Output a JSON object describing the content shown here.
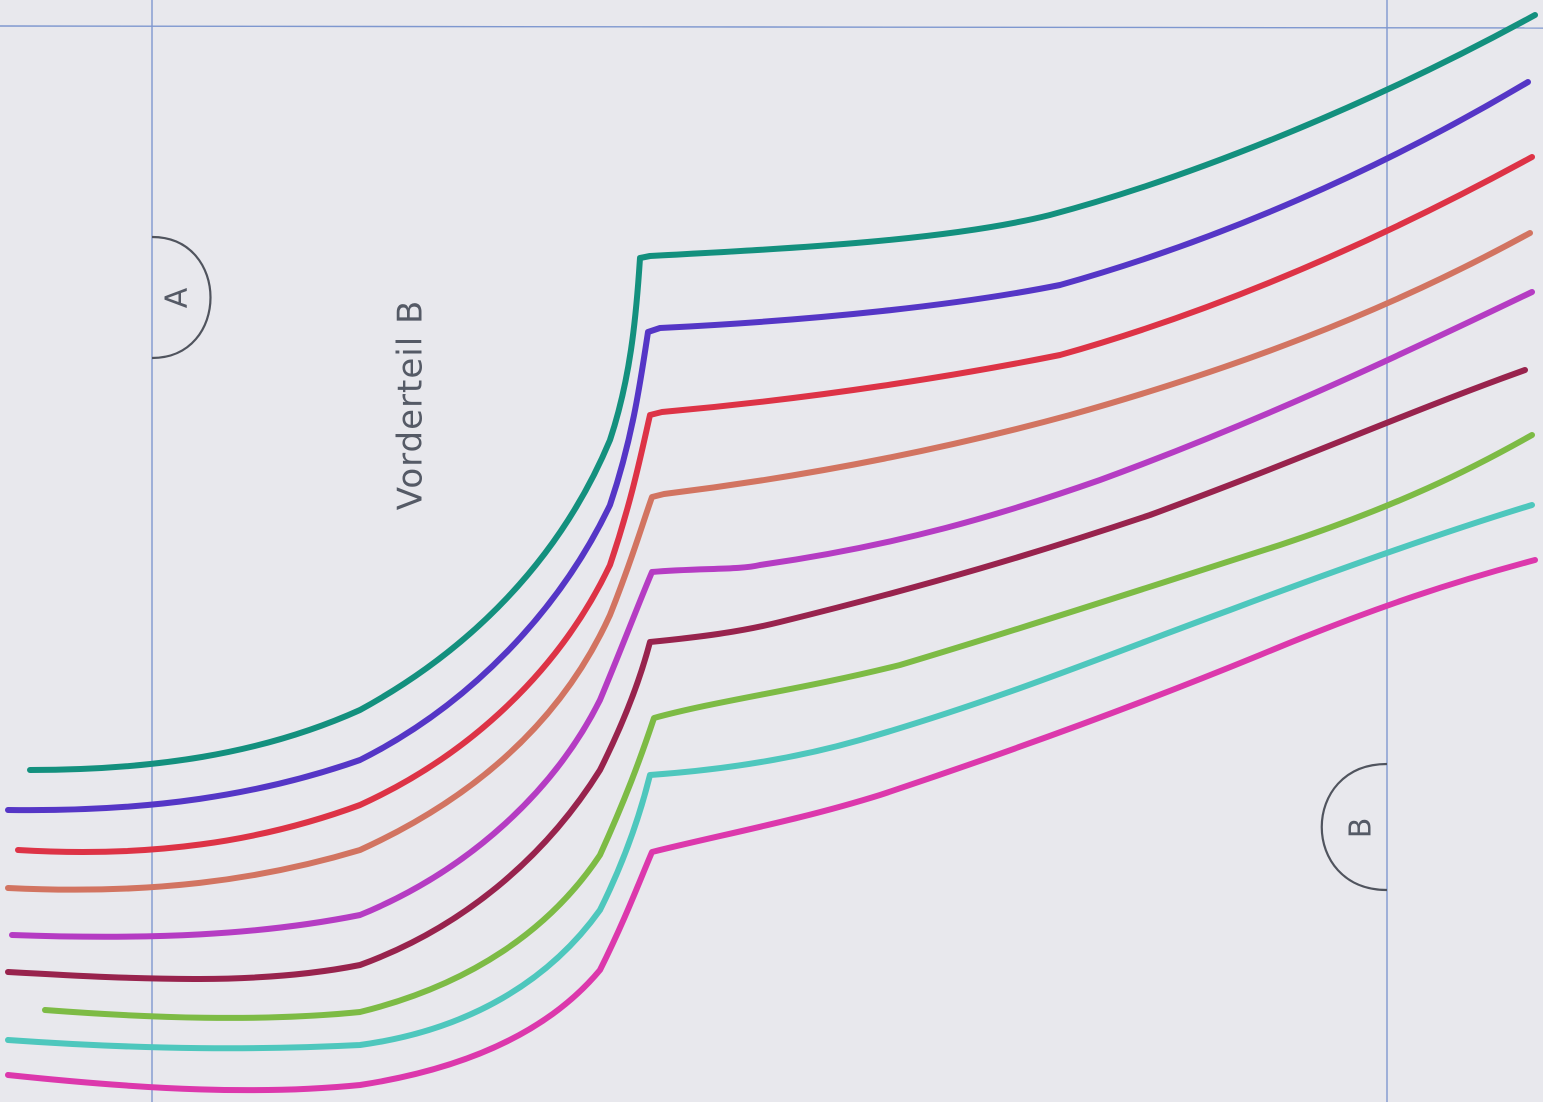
{
  "sheet": {
    "title": "Vorderteil B",
    "paper_color": "#e8e8ed",
    "guide_color": "#7e97cf"
  },
  "markers": {
    "a": {
      "label": "A"
    },
    "b": {
      "label": "B"
    }
  },
  "size_lines": [
    {
      "color": "#13907e"
    },
    {
      "color": "#5536c6"
    },
    {
      "color": "#dd3346"
    },
    {
      "color": "#d27461"
    },
    {
      "color": "#b53cc3"
    },
    {
      "color": "#98234d"
    },
    {
      "color": "#7dbb45"
    },
    {
      "color": "#4ec7bd"
    },
    {
      "color": "#dc38ac"
    }
  ]
}
